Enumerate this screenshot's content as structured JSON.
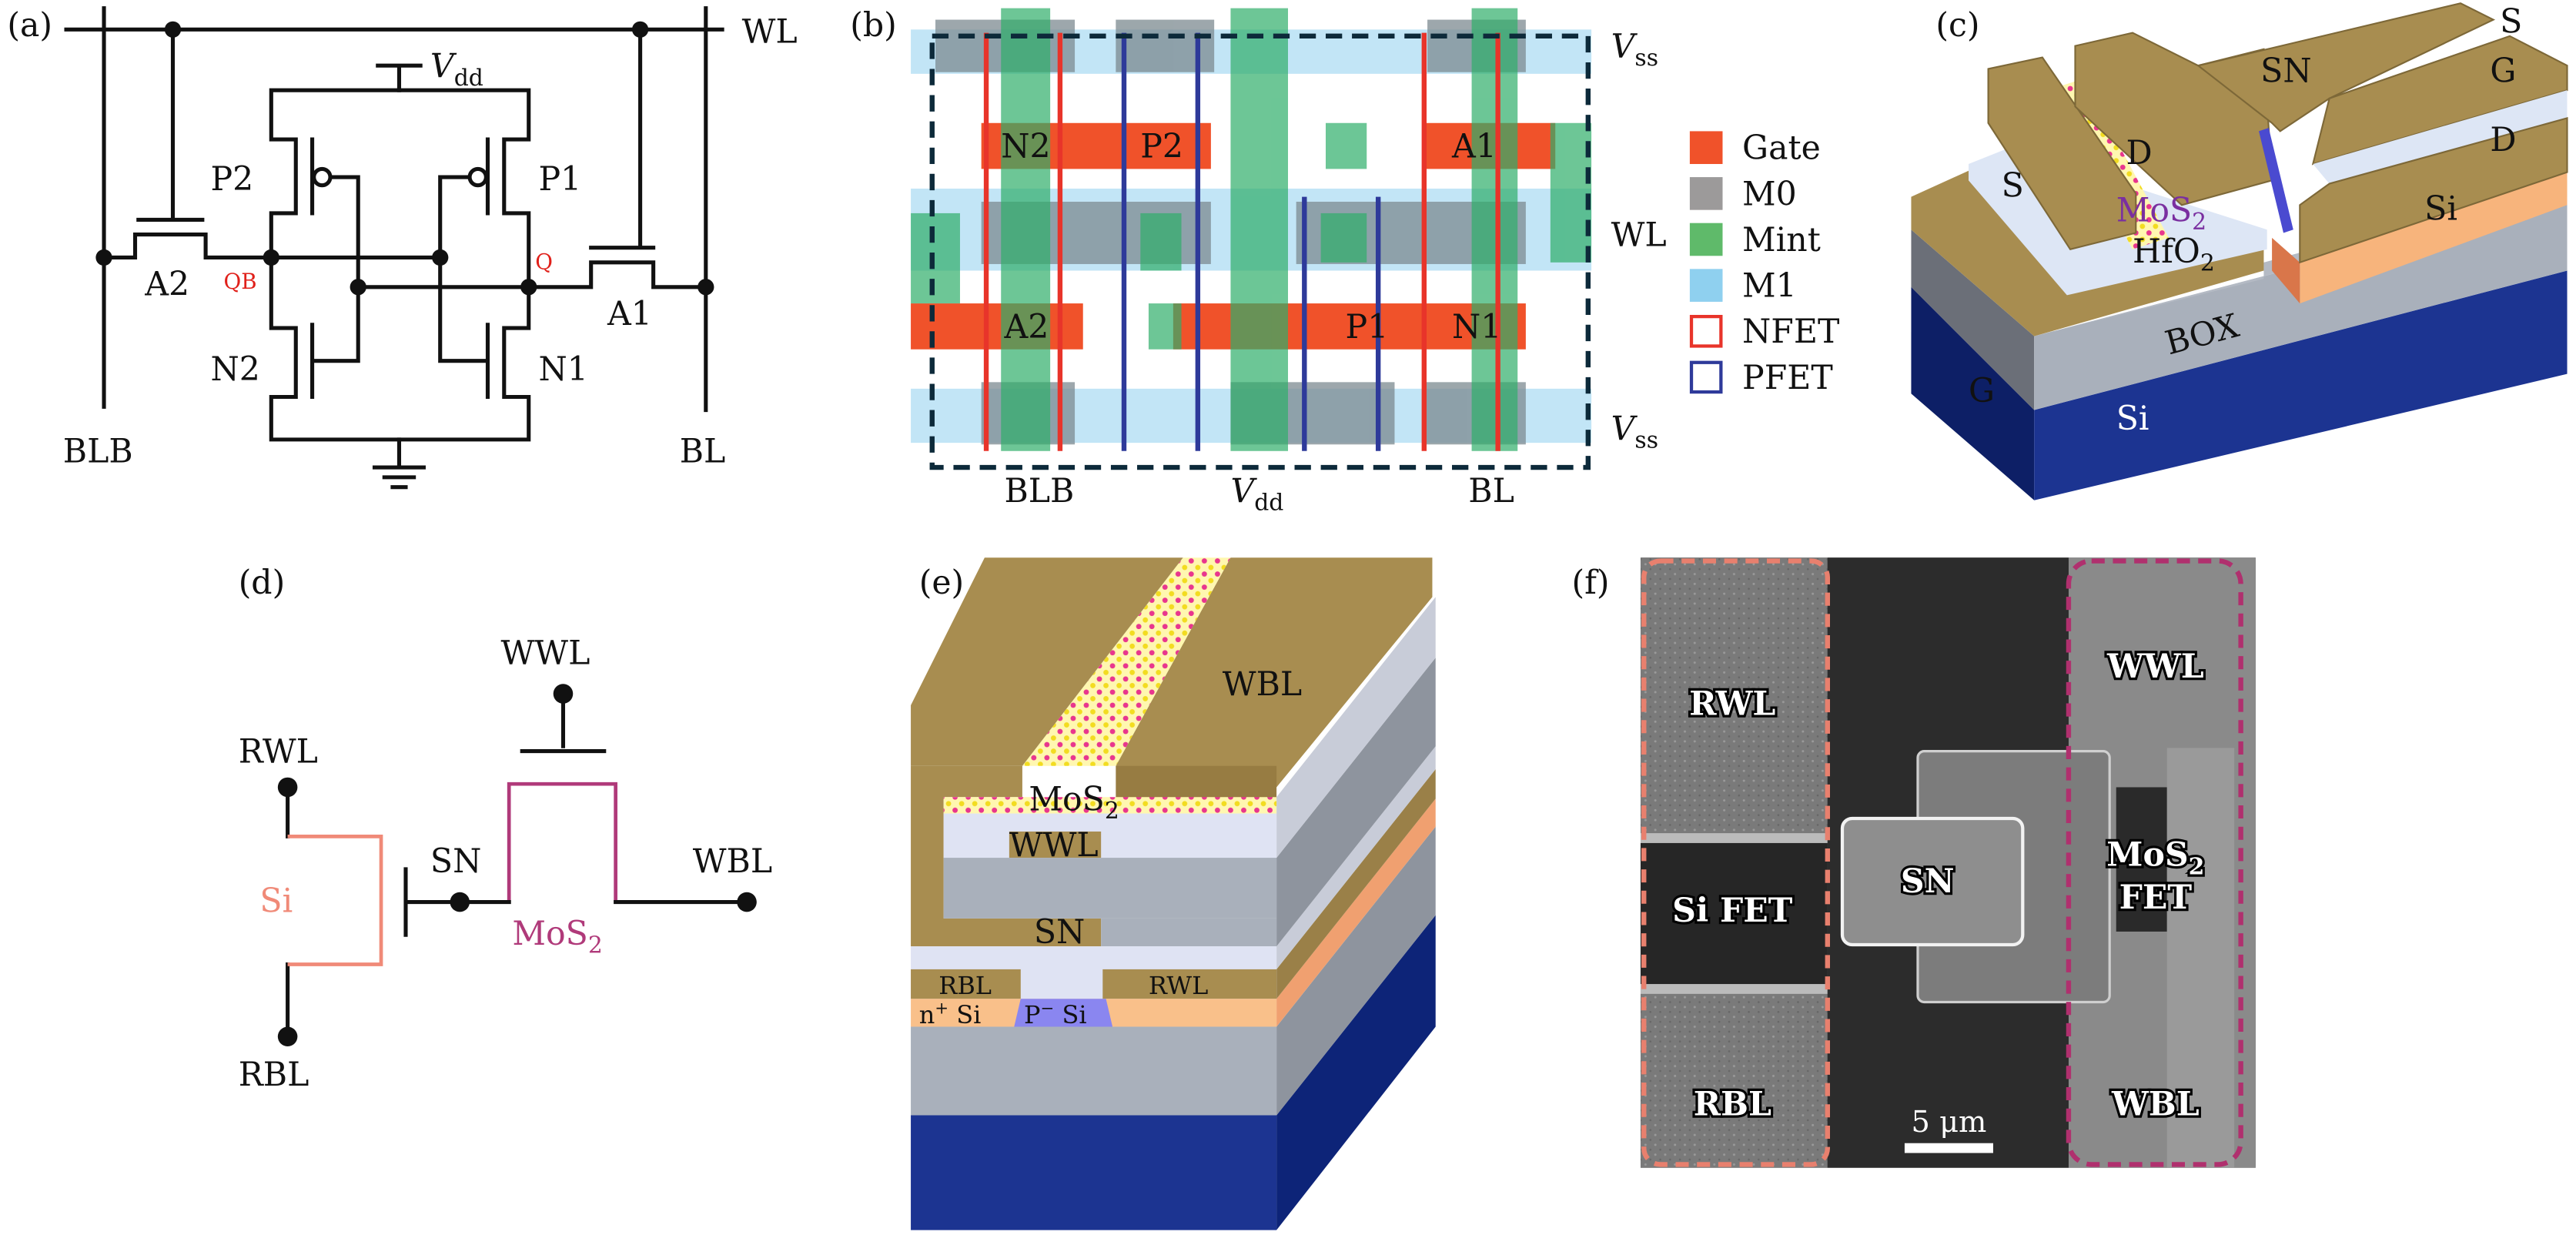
{
  "panels": {
    "a": {
      "label": "(a)",
      "wl": "WL",
      "blb": "BLB",
      "bl": "BL",
      "vdd": {
        "base": "V",
        "sub": "dd"
      },
      "p1": "P1",
      "p2": "P2",
      "n1": "N1",
      "n2": "N2",
      "a1": "A1",
      "a2": "A2",
      "qb": "QB",
      "q": "Q"
    },
    "b": {
      "label": "(b)",
      "n2": "N2",
      "p2": "P2",
      "a1": "A1",
      "a2": "A2",
      "p1": "P1",
      "n1": "N1",
      "wl": "WL",
      "vss_top": {
        "base": "V",
        "sub": "ss"
      },
      "vss_bottom": {
        "base": "V",
        "sub": "ss"
      },
      "blb": "BLB",
      "vdd": {
        "base": "V",
        "sub": "dd"
      },
      "bl": "BL",
      "legend": [
        {
          "label": "Gate",
          "color": "#f0522a",
          "style": "filled"
        },
        {
          "label": "M0",
          "color": "#9c9a9a",
          "style": "filled"
        },
        {
          "label": "Mint",
          "color": "#5fba6a",
          "style": "filled"
        },
        {
          "label": "M1",
          "color": "#8fd0ef",
          "style": "filled"
        },
        {
          "label": "NFET",
          "color": "#e8342a",
          "style": "outline"
        },
        {
          "label": "PFET",
          "color": "#2e3a9a",
          "style": "outline"
        }
      ]
    },
    "c": {
      "label": "(c)",
      "s_left": "S",
      "d_left": "D",
      "mos2": {
        "base": "MoS",
        "sub": "2"
      },
      "hfo2": {
        "base": "HfO",
        "sub": "2"
      },
      "g_left": "G",
      "box": "BOX",
      "si_sub": "Si",
      "s_right": "S",
      "sn": "SN",
      "g_right": "G",
      "d_right": "D",
      "si_right": "Si"
    },
    "d": {
      "label": "(d)",
      "wwl": "WWL",
      "rwl": "RWL",
      "rbl": "RBL",
      "sn": "SN",
      "wbl": "WBL",
      "si": "Si",
      "mos2": {
        "base": "MoS",
        "sub": "2"
      },
      "colors": {
        "si": "#f08a78",
        "mos2": "#b03a7a"
      }
    },
    "e": {
      "label": "(e)",
      "wbl": "WBL",
      "mos2": {
        "base": "MoS",
        "sub": "2"
      },
      "wwl": "WWL",
      "sn": "SN",
      "rbl": "RBL",
      "rwl": "RWL",
      "nsi": {
        "base": "n",
        "sup": "+",
        "rest": " Si"
      },
      "psi": {
        "base": "P",
        "sup": "−",
        "rest": "  Si"
      }
    },
    "f": {
      "label": "(f)",
      "rwl": "RWL",
      "si_fet": "Si FET",
      "rbl": "RBL",
      "sn": "SN",
      "wwl": "WWL",
      "mos2": {
        "base": "MoS",
        "sub": "2"
      },
      "fet": "FET",
      "wbl": "WBL",
      "scale_bar": "5 μm",
      "colors": {
        "si_box": "#e8806e",
        "mos2_box": "#b0306e"
      }
    }
  }
}
